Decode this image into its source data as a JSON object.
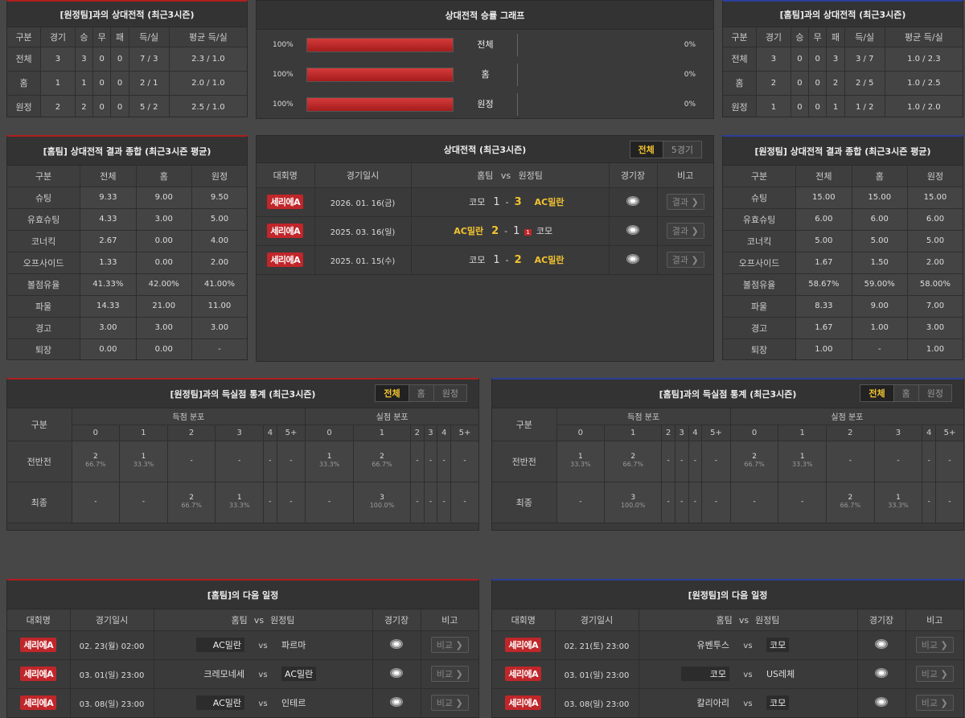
{
  "h2h_away": {
    "title": "[원정팀]과의 상대전적 (최근3시즌)",
    "headers": [
      "구분",
      "경기",
      "승",
      "무",
      "패",
      "득/실",
      "평균 득/실"
    ],
    "rows": [
      [
        "전체",
        "3",
        "3",
        "0",
        "0",
        "7 / 3",
        "2.3 / 1.0"
      ],
      [
        "홈",
        "1",
        "1",
        "0",
        "0",
        "2 / 1",
        "2.0 / 1.0"
      ],
      [
        "원정",
        "2",
        "2",
        "0",
        "0",
        "5 / 2",
        "2.5 / 1.0"
      ]
    ]
  },
  "h2h_home": {
    "title": "[홈팀]과의 상대전적 (최근3시즌)",
    "headers": [
      "구분",
      "경기",
      "승",
      "무",
      "패",
      "득/실",
      "평균 득/실"
    ],
    "rows": [
      [
        "전체",
        "3",
        "0",
        "0",
        "3",
        "3 / 7",
        "1.0 / 2.3"
      ],
      [
        "홈",
        "2",
        "0",
        "0",
        "2",
        "2 / 5",
        "1.0 / 2.5"
      ],
      [
        "원정",
        "1",
        "0",
        "0",
        "1",
        "1 / 2",
        "1.0 / 2.0"
      ]
    ]
  },
  "winrate": {
    "title": "상대전적 승률 그래프",
    "rows": [
      {
        "label": "전체",
        "left": "100%",
        "right": "0%",
        "left_value": 100,
        "right_value": 0
      },
      {
        "label": "홈",
        "left": "100%",
        "right": "0%",
        "left_value": 100,
        "right_value": 0
      },
      {
        "label": "원정",
        "left": "100%",
        "right": "0%",
        "left_value": 100,
        "right_value": 0
      }
    ]
  },
  "home_summary": {
    "title": "[홈팀] 상대전적 결과 종합 (최근3시즌 평균)",
    "headers": [
      "구분",
      "전체",
      "홈",
      "원정"
    ],
    "rows": [
      [
        "슈팅",
        "9.33",
        "9.00",
        "9.50"
      ],
      [
        "유효슈팅",
        "4.33",
        "3.00",
        "5.00"
      ],
      [
        "코너킥",
        "2.67",
        "0.00",
        "4.00"
      ],
      [
        "오프사이드",
        "1.33",
        "0.00",
        "2.00"
      ],
      [
        "볼점유율",
        "41.33%",
        "42.00%",
        "41.00%"
      ],
      [
        "파울",
        "14.33",
        "21.00",
        "11.00"
      ],
      [
        "경고",
        "3.00",
        "3.00",
        "3.00"
      ],
      [
        "퇴장",
        "0.00",
        "0.00",
        "-"
      ]
    ]
  },
  "away_summary": {
    "title": "[원정팀] 상대전적 결과 종합 (최근3시즌 평균)",
    "headers": [
      "구분",
      "전체",
      "홈",
      "원정"
    ],
    "rows": [
      [
        "슈팅",
        "15.00",
        "15.00",
        "15.00"
      ],
      [
        "유효슈팅",
        "6.00",
        "6.00",
        "6.00"
      ],
      [
        "코너킥",
        "5.00",
        "5.00",
        "5.00"
      ],
      [
        "오프사이드",
        "1.67",
        "1.50",
        "2.00"
      ],
      [
        "볼점유율",
        "58.67%",
        "59.00%",
        "58.00%"
      ],
      [
        "파울",
        "8.33",
        "9.00",
        "7.00"
      ],
      [
        "경고",
        "1.67",
        "1.00",
        "3.00"
      ],
      [
        "퇴장",
        "1.00",
        "-",
        "1.00"
      ]
    ]
  },
  "recent": {
    "title": "상대전적 (최근3시즌)",
    "tabs": [
      "전체",
      "5경기"
    ],
    "headers": {
      "league": "대회명",
      "date": "경기일시",
      "home": "홈팀",
      "vs": "vs",
      "away": "원정팀",
      "venue": "경기장",
      "note": "비고"
    },
    "matches": [
      {
        "league": "세리에A",
        "date": "2026. 01. 16(금)",
        "home": "코모",
        "hs": "1",
        "dash": "-",
        "as": "3",
        "away": "AC밀란",
        "btn": "결과 ❯",
        "card": ""
      },
      {
        "league": "세리에A",
        "date": "2025. 03. 16(일)",
        "home": "AC밀란",
        "hs": "2",
        "dash": "-",
        "as": "1",
        "away": "코모",
        "btn": "결과 ❯",
        "card": "1"
      },
      {
        "league": "세리에A",
        "date": "2025. 01. 15(수)",
        "home": "코모",
        "hs": "1",
        "dash": "-",
        "as": "2",
        "away": "AC밀란",
        "btn": "결과 ❯",
        "card": ""
      }
    ]
  },
  "goals_left": {
    "title": "[원정팀]과의 득실점 통계 (최근3시즌)",
    "tabs": [
      "전체",
      "홈",
      "원정"
    ],
    "col_label": "구분",
    "scored": "득점 분포",
    "conceded": "실점 분포",
    "buckets": [
      "0",
      "1",
      "2",
      "3",
      "4",
      "5+"
    ],
    "rows": [
      {
        "label": "전반전",
        "cells": [
          [
            "2",
            "66.7%"
          ],
          [
            "1",
            "33.3%"
          ],
          [
            "-",
            ""
          ],
          [
            "-",
            ""
          ],
          [
            "-",
            ""
          ],
          [
            "-",
            ""
          ],
          [
            "1",
            "33.3%"
          ],
          [
            "2",
            "66.7%"
          ],
          [
            "-",
            ""
          ],
          [
            "-",
            ""
          ],
          [
            "-",
            ""
          ],
          [
            "-",
            ""
          ]
        ]
      },
      {
        "label": "최종",
        "cells": [
          [
            "-",
            ""
          ],
          [
            "-",
            ""
          ],
          [
            "2",
            "66.7%"
          ],
          [
            "1",
            "33.3%"
          ],
          [
            "-",
            ""
          ],
          [
            "-",
            ""
          ],
          [
            "-",
            ""
          ],
          [
            "3",
            "100.0%"
          ],
          [
            "-",
            ""
          ],
          [
            "-",
            ""
          ],
          [
            "-",
            ""
          ],
          [
            "-",
            ""
          ]
        ]
      }
    ]
  },
  "goals_right": {
    "title": "[홈팀]과의 득실점 통계 (최근3시즌)",
    "tabs": [
      "전체",
      "홈",
      "원정"
    ],
    "col_label": "구분",
    "scored": "득점 분포",
    "conceded": "실점 분포",
    "buckets": [
      "0",
      "1",
      "2",
      "3",
      "4",
      "5+"
    ],
    "rows": [
      {
        "label": "전반전",
        "cells": [
          [
            "1",
            "33.3%"
          ],
          [
            "2",
            "66.7%"
          ],
          [
            "-",
            ""
          ],
          [
            "-",
            ""
          ],
          [
            "-",
            ""
          ],
          [
            "-",
            ""
          ],
          [
            "2",
            "66.7%"
          ],
          [
            "1",
            "33.3%"
          ],
          [
            "-",
            ""
          ],
          [
            "-",
            ""
          ],
          [
            "-",
            ""
          ],
          [
            "-",
            ""
          ]
        ]
      },
      {
        "label": "최종",
        "cells": [
          [
            "-",
            ""
          ],
          [
            "3",
            "100.0%"
          ],
          [
            "-",
            ""
          ],
          [
            "-",
            ""
          ],
          [
            "-",
            ""
          ],
          [
            "-",
            ""
          ],
          [
            "-",
            ""
          ],
          [
            "-",
            ""
          ],
          [
            "2",
            "66.7%"
          ],
          [
            "1",
            "33.3%"
          ],
          [
            "-",
            ""
          ],
          [
            "-",
            ""
          ]
        ]
      }
    ]
  },
  "next_home": {
    "title": "[홈팀]의 다음 일정",
    "headers": {
      "league": "대회명",
      "date": "경기일시",
      "home": "홈팀",
      "vs": "vs",
      "away": "원정팀",
      "venue": "경기장",
      "note": "비고"
    },
    "matches": [
      {
        "league": "세리에A",
        "date": "02. 23(월) 02:00",
        "home": "AC밀란",
        "away": "파르마",
        "hl": "home",
        "btn": "비교 ❯"
      },
      {
        "league": "세리에A",
        "date": "03. 01(일) 23:00",
        "home": "크레모네세",
        "away": "AC밀란",
        "hl": "away",
        "btn": "비교 ❯"
      },
      {
        "league": "세리에A",
        "date": "03. 08(일) 23:00",
        "home": "AC밀란",
        "away": "인테르",
        "hl": "home",
        "btn": "비교 ❯"
      }
    ]
  },
  "next_away": {
    "title": "[원정팀]의 다음 일정",
    "headers": {
      "league": "대회명",
      "date": "경기일시",
      "home": "홈팀",
      "vs": "vs",
      "away": "원정팀",
      "venue": "경기장",
      "note": "비고"
    },
    "matches": [
      {
        "league": "세리에A",
        "date": "02. 21(토) 23:00",
        "home": "유벤투스",
        "away": "코모",
        "hl": "away",
        "btn": "비교 ❯"
      },
      {
        "league": "세리에A",
        "date": "03. 01(일) 23:00",
        "home": "코모",
        "away": "US레체",
        "hl": "home",
        "btn": "비교 ❯"
      },
      {
        "league": "세리에A",
        "date": "03. 08(일) 23:00",
        "home": "칼리아리",
        "away": "코모",
        "hl": "away",
        "btn": "비교 ❯"
      }
    ]
  },
  "colors": {
    "red": "#c0262a",
    "gold": "#f4c430",
    "bar": "#c0262a"
  }
}
